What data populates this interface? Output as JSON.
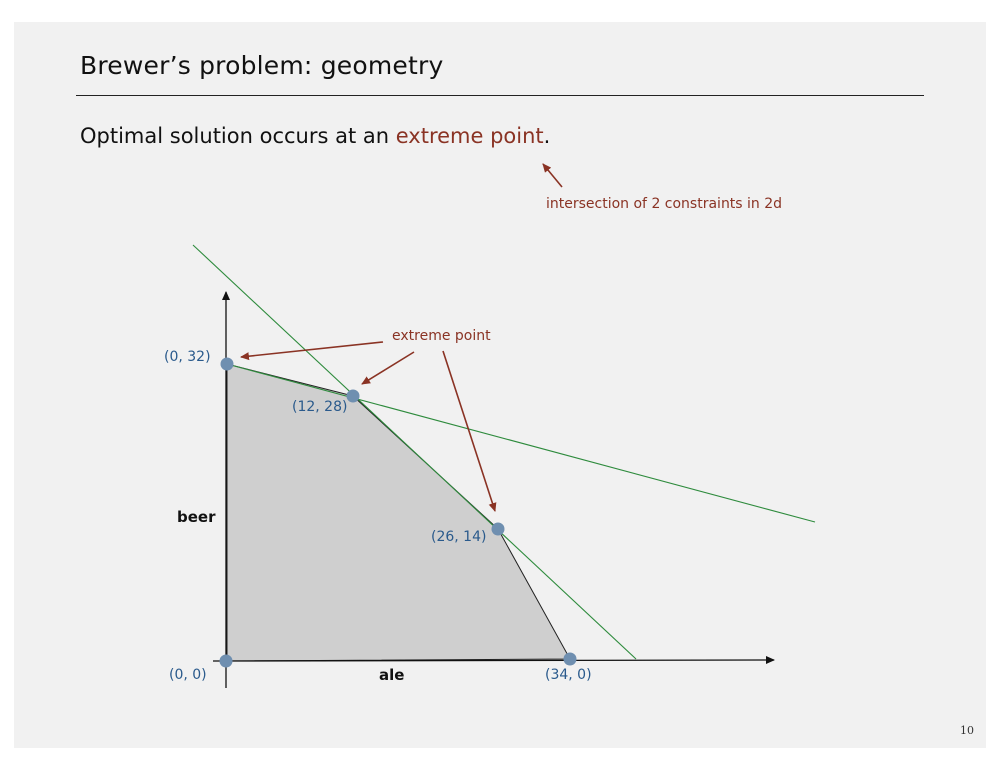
{
  "slide": {
    "title": "Brewer’s problem:  geometry",
    "subtitle_prefix": "Optimal solution occurs at an ",
    "subtitle_highlight": "extreme point",
    "subtitle_suffix": ".",
    "annotation": "intersection of 2 constraints in 2d",
    "page_number": "10"
  },
  "diagram": {
    "x_axis_label": "ale",
    "y_axis_label": "beer",
    "extreme_point_label": "extreme point",
    "vertices": [
      {
        "label": "(0, 0)",
        "ale": 0,
        "beer": 0
      },
      {
        "label": "(0, 32)",
        "ale": 0,
        "beer": 32
      },
      {
        "label": "(12, 28)",
        "ale": 12,
        "beer": 28
      },
      {
        "label": "(26, 14)",
        "ale": 26,
        "beer": 14
      },
      {
        "label": "(34, 0)",
        "ale": 34,
        "beer": 0
      }
    ],
    "colors": {
      "region_fill": "#cfcfcf",
      "constraint_line": "#2e8b3d",
      "point": "#6f8fb0",
      "arrow": "#8a3324",
      "point_label": "#2a5a8c"
    }
  }
}
